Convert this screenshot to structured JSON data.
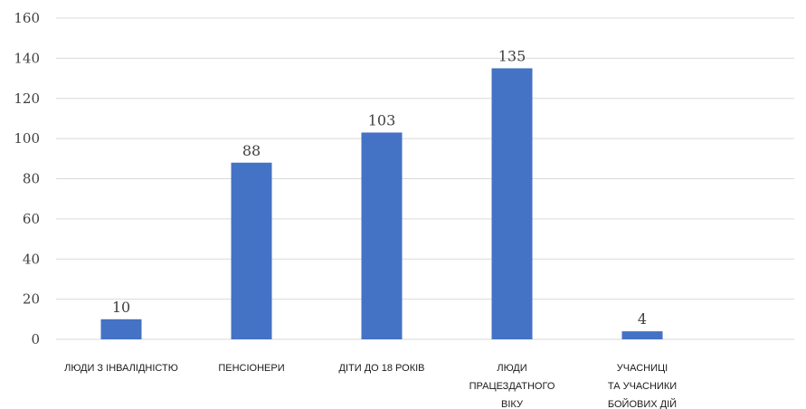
{
  "chart_data": {
    "type": "bar",
    "categories": [
      [
        "ЛЮДИ З ІНВАЛІДНІСТЮ"
      ],
      [
        "ПЕНСІОНЕРИ"
      ],
      [
        "ДІТИ ДО 18 РОКІВ"
      ],
      [
        "ЛЮДИ",
        "ПРАЦЕЗДАТНОГО",
        "ВІКУ"
      ],
      [
        "УЧАСНИЦІ",
        "ТА УЧАСНИКИ",
        "БОЙОВИХ ДІЙ"
      ]
    ],
    "values": [
      10,
      88,
      103,
      135,
      4
    ],
    "ylim": [
      0,
      160
    ],
    "yticks": [
      0,
      20,
      40,
      60,
      80,
      100,
      120,
      140,
      160
    ],
    "grid": true,
    "bar_color": "#4472c4",
    "legend": "none"
  }
}
